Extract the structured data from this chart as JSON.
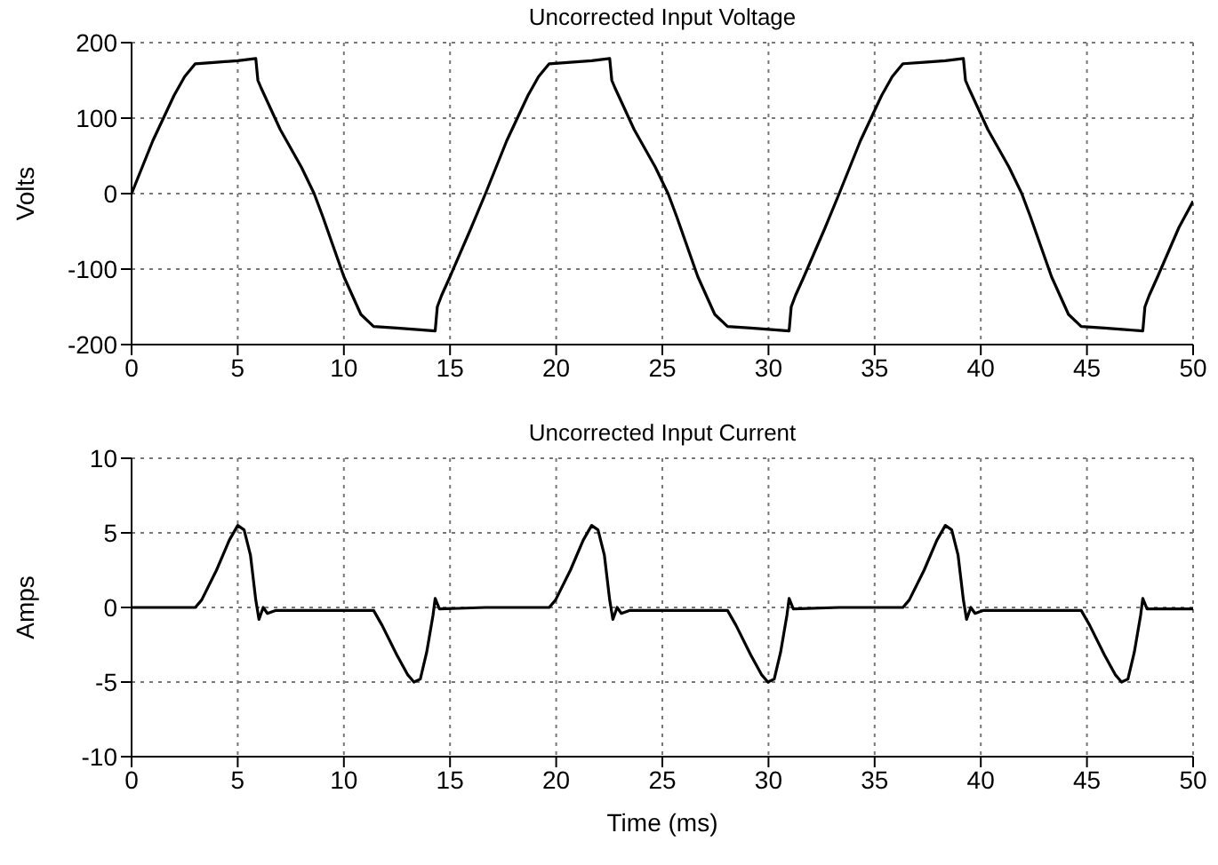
{
  "chart_data": [
    {
      "type": "line",
      "title": "Uncorrected Input Voltage",
      "ylabel": "Volts",
      "xlim": [
        0,
        50
      ],
      "xticks": [
        0,
        5,
        10,
        15,
        20,
        25,
        30,
        35,
        40,
        45,
        50
      ],
      "ylim": [
        -200,
        200
      ],
      "yticks": [
        -200,
        -100,
        0,
        100,
        200
      ],
      "grid": true,
      "marker": "none",
      "line_style": "solid",
      "series": [
        {
          "color": "#000000",
          "x": [
            0,
            0.5,
            1,
            1.5,
            2,
            2.5,
            3,
            4,
            5,
            5.85,
            5.95,
            6.1,
            7,
            8,
            8.6,
            9,
            10,
            10.8,
            11.4,
            12.5,
            14.3,
            14.4,
            14.6,
            15,
            16,
            16.67,
            17.17,
            17.67,
            18.17,
            18.67,
            19.17,
            19.67,
            20.67,
            21.67,
            22.52,
            22.62,
            22.77,
            23.67,
            24.67,
            25.27,
            25.67,
            26.67,
            27.47,
            28.07,
            29.17,
            30.97,
            31.07,
            31.27,
            31.67,
            32.67,
            33.33,
            33.83,
            34.33,
            34.83,
            35.33,
            35.83,
            36.33,
            37.33,
            38.33,
            39.18,
            39.28,
            39.43,
            40.33,
            41.33,
            41.93,
            42.33,
            43.33,
            44.13,
            44.73,
            45.83,
            47.63,
            47.73,
            47.93,
            48.33,
            49.33,
            50
          ],
          "values": [
            0,
            35,
            70,
            100,
            130,
            155,
            172,
            174,
            176,
            179,
            150,
            140,
            85,
            35,
            0,
            -30,
            -110,
            -160,
            -176,
            -178,
            -182,
            -150,
            -135,
            -110,
            -45,
            0,
            35,
            70,
            100,
            130,
            155,
            172,
            174,
            176,
            179,
            150,
            140,
            85,
            35,
            0,
            -30,
            -110,
            -160,
            -176,
            -178,
            -182,
            -150,
            -135,
            -110,
            -45,
            0,
            35,
            70,
            100,
            130,
            155,
            172,
            174,
            176,
            179,
            150,
            140,
            85,
            35,
            0,
            -30,
            -110,
            -160,
            -176,
            -178,
            -182,
            -150,
            -135,
            -110,
            -45,
            -10
          ]
        }
      ]
    },
    {
      "type": "line",
      "title": "Uncorrected Input Current",
      "ylabel": "Amps",
      "xlabel": "Time (ms)",
      "xlim": [
        0,
        50
      ],
      "xticks": [
        0,
        5,
        10,
        15,
        20,
        25,
        30,
        35,
        40,
        45,
        50
      ],
      "ylim": [
        -10,
        10
      ],
      "yticks": [
        -10,
        -5,
        0,
        5,
        10
      ],
      "grid": true,
      "marker": "none",
      "line_style": "solid",
      "series": [
        {
          "color": "#000000",
          "x": [
            0,
            3,
            3.3,
            4,
            4.6,
            5,
            5.3,
            5.6,
            5.85,
            6,
            6.2,
            6.4,
            6.8,
            11.4,
            11.8,
            12.5,
            13,
            13.3,
            13.6,
            13.9,
            14.2,
            14.3,
            14.5,
            16.67,
            19.67,
            19.97,
            20.67,
            21.27,
            21.67,
            21.97,
            22.27,
            22.52,
            22.67,
            22.87,
            23.07,
            23.47,
            28.07,
            28.47,
            29.17,
            29.67,
            29.97,
            30.27,
            30.57,
            30.87,
            30.97,
            31.17,
            33.33,
            36.33,
            36.63,
            37.33,
            37.93,
            38.33,
            38.63,
            38.93,
            39.18,
            39.33,
            39.53,
            39.73,
            40.13,
            44.73,
            45.13,
            45.83,
            46.33,
            46.63,
            46.93,
            47.23,
            47.53,
            47.63,
            47.83,
            50
          ],
          "values": [
            0,
            0,
            0.5,
            2.5,
            4.5,
            5.5,
            5.2,
            3.5,
            0.5,
            -0.8,
            0,
            -0.4,
            -0.2,
            -0.2,
            -1.2,
            -3.2,
            -4.5,
            -5,
            -4.8,
            -3,
            -0.5,
            0.6,
            -0.1,
            0,
            0,
            0.5,
            2.5,
            4.5,
            5.5,
            5.2,
            3.5,
            0.5,
            -0.8,
            0,
            -0.4,
            -0.2,
            -0.2,
            -1.2,
            -3.2,
            -4.5,
            -5,
            -4.8,
            -3,
            -0.5,
            0.6,
            -0.1,
            0,
            0,
            0.5,
            2.5,
            4.5,
            5.5,
            5.2,
            3.5,
            0.5,
            -0.8,
            0,
            -0.4,
            -0.2,
            -0.2,
            -1.2,
            -3.2,
            -4.5,
            -5,
            -4.8,
            -3,
            -0.5,
            0.6,
            -0.1,
            -0.1
          ]
        }
      ]
    }
  ]
}
